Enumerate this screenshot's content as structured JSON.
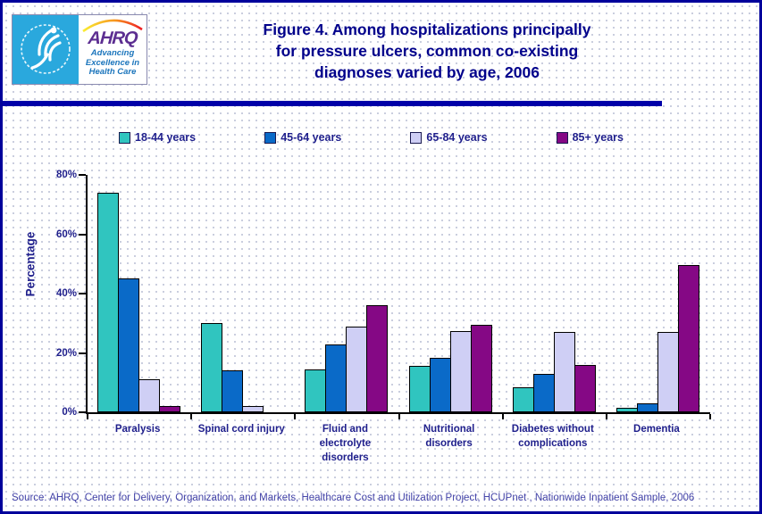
{
  "colors": {
    "page_border": "#00009B",
    "divider": "#0000A8",
    "dot_color": "#C6CADC",
    "title_text": "#00008B",
    "label_text": "#1F1F8C",
    "source_text": "#4343A8",
    "logo_blue": "#2AA8DD",
    "logo_purple": "#5C2E91",
    "logo_tagline_blue": "#1B75BC"
  },
  "header": {
    "logo": {
      "ahrq_text": "AHRQ",
      "tagline_line1": "Advancing",
      "tagline_line2": "Excellence in",
      "tagline_line3": "Health Care"
    },
    "title_line1": "Figure 4. Among hospitalizations principally",
    "title_line2": "for pressure ulcers, common co-existing",
    "title_line3": "diagnoses varied by age, 2006"
  },
  "chart_data": {
    "type": "bar",
    "title": "Figure 4. Among hospitalizations principally for pressure ulcers, common co-existing diagnoses varied by age, 2006",
    "ylabel": "Percentage",
    "xlabel": "",
    "ylim": [
      0,
      80
    ],
    "yticks": [
      0,
      20,
      40,
      60,
      80
    ],
    "ytick_labels": [
      "0%",
      "20%",
      "40%",
      "60%",
      "80%"
    ],
    "grid": false,
    "legend_position": "top",
    "categories": [
      "Paralysis",
      "Spinal cord injury",
      "Fluid and electrolyte disorders",
      "Nutritional disorders",
      "Diabetes without complications",
      "Dementia"
    ],
    "series": [
      {
        "name": "18-44 years",
        "color": "#30C5BF",
        "pattern": "solid",
        "values": [
          74,
          30,
          14.5,
          15.5,
          8.5,
          1.5
        ]
      },
      {
        "name": "45-64 years",
        "color": "#0A6AC8",
        "pattern": "solid",
        "values": [
          45,
          14,
          23,
          18.5,
          13,
          3
        ]
      },
      {
        "name": "65-84 years",
        "color": "#CFCFF5",
        "pattern": "dots",
        "values": [
          11,
          2,
          29,
          27.5,
          27,
          27
        ]
      },
      {
        "name": "85+ years",
        "color": "#850885",
        "pattern": "crosshatch",
        "values": [
          2,
          0,
          36,
          29.5,
          16,
          49.5
        ]
      }
    ]
  },
  "footer": {
    "source": "Source: AHRQ, Center for Delivery, Organization, and Markets, Healthcare Cost and Utilization Project, HCUPnet , Nationwide Inpatient Sample, 2006"
  }
}
